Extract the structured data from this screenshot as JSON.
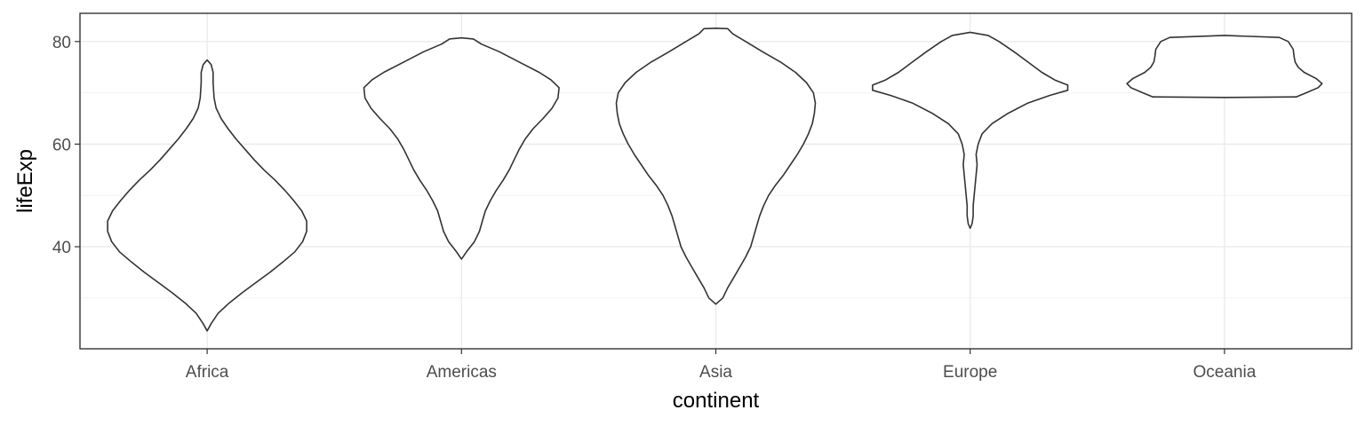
{
  "chart_data": {
    "type": "violin",
    "xlabel": "continent",
    "ylabel": "lifeExp",
    "categories": [
      "Africa",
      "Americas",
      "Asia",
      "Europe",
      "Oceania"
    ],
    "ylim": [
      20.1,
      85.5
    ],
    "yticks": [
      40,
      60,
      80
    ],
    "grid": true,
    "theme": "bw",
    "colors": {
      "outline": "#333333",
      "fill": "#ffffff",
      "grid_major": "#ebebeb",
      "grid_minor": "#f3f3f3",
      "panel_border": "#333333",
      "tick_text": "#4d4d4d",
      "axis_title": "#000000"
    },
    "series": [
      {
        "category": "Africa",
        "min": 23.6,
        "max": 76.4,
        "density": [
          [
            23.6,
            0.0
          ],
          [
            25.0,
            0.04
          ],
          [
            27.0,
            0.11
          ],
          [
            29.0,
            0.22
          ],
          [
            31.0,
            0.35
          ],
          [
            33.0,
            0.49
          ],
          [
            35.0,
            0.63
          ],
          [
            37.0,
            0.76
          ],
          [
            39.0,
            0.88
          ],
          [
            41.0,
            0.96
          ],
          [
            43.0,
            1.0
          ],
          [
            45.0,
            1.0
          ],
          [
            47.0,
            0.95
          ],
          [
            49.0,
            0.87
          ],
          [
            51.0,
            0.78
          ],
          [
            53.0,
            0.68
          ],
          [
            55.0,
            0.57
          ],
          [
            57.0,
            0.47
          ],
          [
            59.0,
            0.38
          ],
          [
            61.0,
            0.29
          ],
          [
            63.0,
            0.21
          ],
          [
            65.0,
            0.14
          ],
          [
            67.0,
            0.09
          ],
          [
            69.0,
            0.07
          ],
          [
            72.0,
            0.06
          ],
          [
            74.0,
            0.06
          ],
          [
            75.5,
            0.04
          ],
          [
            76.4,
            0.0
          ]
        ]
      },
      {
        "category": "Americas",
        "min": 37.6,
        "max": 80.7,
        "density": [
          [
            37.6,
            0.0
          ],
          [
            39.0,
            0.05
          ],
          [
            41.0,
            0.13
          ],
          [
            43.0,
            0.18
          ],
          [
            45.0,
            0.21
          ],
          [
            47.0,
            0.24
          ],
          [
            49.0,
            0.29
          ],
          [
            51.0,
            0.35
          ],
          [
            53.0,
            0.42
          ],
          [
            55.0,
            0.48
          ],
          [
            57.0,
            0.53
          ],
          [
            59.0,
            0.58
          ],
          [
            61.0,
            0.64
          ],
          [
            63.0,
            0.72
          ],
          [
            65.0,
            0.82
          ],
          [
            67.0,
            0.91
          ],
          [
            69.0,
            0.97
          ],
          [
            71.0,
            0.98
          ],
          [
            72.5,
            0.9
          ],
          [
            74.0,
            0.78
          ],
          [
            76.0,
            0.58
          ],
          [
            78.0,
            0.38
          ],
          [
            79.5,
            0.2
          ],
          [
            80.5,
            0.12
          ],
          [
            80.7,
            0.0
          ]
        ]
      },
      {
        "category": "Asia",
        "min": 28.8,
        "max": 82.6,
        "density": [
          [
            28.8,
            0.0
          ],
          [
            30.0,
            0.07
          ],
          [
            32.0,
            0.12
          ],
          [
            34.0,
            0.18
          ],
          [
            36.0,
            0.24
          ],
          [
            38.0,
            0.3
          ],
          [
            40.0,
            0.35
          ],
          [
            42.0,
            0.38
          ],
          [
            44.0,
            0.41
          ],
          [
            46.0,
            0.44
          ],
          [
            48.0,
            0.48
          ],
          [
            50.0,
            0.53
          ],
          [
            52.0,
            0.6
          ],
          [
            54.0,
            0.68
          ],
          [
            56.0,
            0.75
          ],
          [
            58.0,
            0.82
          ],
          [
            60.0,
            0.88
          ],
          [
            62.0,
            0.93
          ],
          [
            64.0,
            0.97
          ],
          [
            66.0,
            0.99
          ],
          [
            68.0,
            1.0
          ],
          [
            70.0,
            0.98
          ],
          [
            72.0,
            0.91
          ],
          [
            74.0,
            0.8
          ],
          [
            76.0,
            0.65
          ],
          [
            78.0,
            0.47
          ],
          [
            80.0,
            0.3
          ],
          [
            81.5,
            0.17
          ],
          [
            82.5,
            0.12
          ],
          [
            82.6,
            0.0
          ]
        ]
      },
      {
        "category": "Europe",
        "min": 43.6,
        "max": 81.8,
        "density": [
          [
            43.6,
            0.0
          ],
          [
            44.5,
            0.02
          ],
          [
            46.0,
            0.03
          ],
          [
            48.0,
            0.03
          ],
          [
            50.0,
            0.04
          ],
          [
            52.0,
            0.05
          ],
          [
            54.0,
            0.06
          ],
          [
            56.0,
            0.07
          ],
          [
            58.0,
            0.06
          ],
          [
            60.0,
            0.08
          ],
          [
            62.0,
            0.12
          ],
          [
            64.0,
            0.22
          ],
          [
            66.0,
            0.38
          ],
          [
            68.0,
            0.58
          ],
          [
            69.5,
            0.8
          ],
          [
            70.5,
            0.98
          ],
          [
            71.5,
            0.98
          ],
          [
            72.5,
            0.85
          ],
          [
            74.0,
            0.72
          ],
          [
            76.0,
            0.58
          ],
          [
            78.0,
            0.44
          ],
          [
            80.0,
            0.29
          ],
          [
            81.2,
            0.18
          ],
          [
            81.8,
            0.0
          ]
        ]
      },
      {
        "category": "Oceania",
        "min": 69.1,
        "max": 81.2,
        "density": [
          [
            69.1,
            0.0
          ],
          [
            69.2,
            0.72
          ],
          [
            70.0,
            0.82
          ],
          [
            71.0,
            0.94
          ],
          [
            71.8,
            0.98
          ],
          [
            72.8,
            0.92
          ],
          [
            74.0,
            0.8
          ],
          [
            75.0,
            0.74
          ],
          [
            76.0,
            0.71
          ],
          [
            77.0,
            0.7
          ],
          [
            78.5,
            0.69
          ],
          [
            80.0,
            0.64
          ],
          [
            80.8,
            0.55
          ],
          [
            81.2,
            0.0
          ]
        ]
      }
    ]
  }
}
